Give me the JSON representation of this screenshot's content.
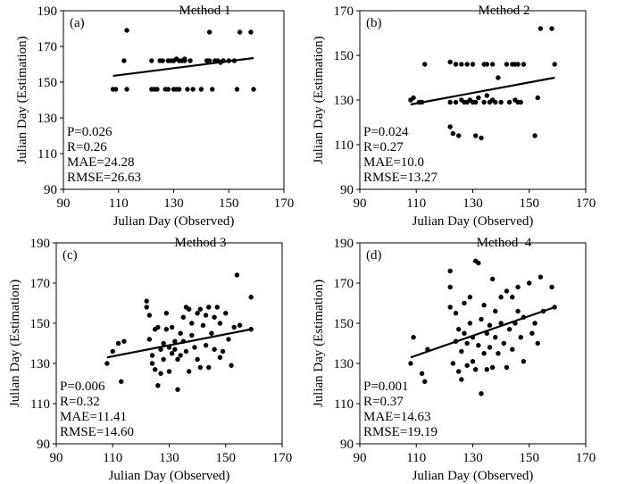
{
  "chart_data": [
    {
      "type": "scatter",
      "panel_label": "(a)",
      "title": "Method 1",
      "xlabel": "Julian Day (Observed)",
      "ylabel": "Julian Day (Estimation)",
      "xlim": [
        90,
        170
      ],
      "ylim": [
        90,
        190
      ],
      "xticks": [
        "90",
        "110",
        "130",
        "150",
        "170"
      ],
      "yticks": [
        "90",
        "110",
        "130",
        "150",
        "170",
        "190"
      ],
      "stats": [
        "P=0.026",
        "R=0.26",
        "MAE=24.28",
        "RMSE=26.63"
      ],
      "trendline": [
        [
          108,
          153.5
        ],
        [
          159,
          163.5
        ]
      ],
      "points": [
        [
          108,
          146
        ],
        [
          109,
          146
        ],
        [
          112,
          162
        ],
        [
          113,
          179
        ],
        [
          113,
          146
        ],
        [
          122,
          162
        ],
        [
          122,
          146
        ],
        [
          123,
          146
        ],
        [
          124,
          146
        ],
        [
          125,
          162
        ],
        [
          126,
          162
        ],
        [
          127,
          146
        ],
        [
          128,
          162
        ],
        [
          128,
          146
        ],
        [
          129,
          162
        ],
        [
          130,
          162
        ],
        [
          130,
          146
        ],
        [
          131,
          163
        ],
        [
          131,
          146
        ],
        [
          132,
          162
        ],
        [
          132,
          146
        ],
        [
          133,
          162
        ],
        [
          134,
          163
        ],
        [
          134,
          162
        ],
        [
          135,
          146
        ],
        [
          136,
          162
        ],
        [
          137,
          146
        ],
        [
          140,
          146
        ],
        [
          142,
          162
        ],
        [
          143,
          178
        ],
        [
          143,
          162
        ],
        [
          144,
          146
        ],
        [
          145,
          162
        ],
        [
          146,
          162
        ],
        [
          147,
          161
        ],
        [
          148,
          162
        ],
        [
          150,
          162
        ],
        [
          152,
          162
        ],
        [
          153,
          146
        ],
        [
          154,
          178
        ],
        [
          158,
          178
        ],
        [
          159,
          146
        ]
      ]
    },
    {
      "type": "scatter",
      "panel_label": "(b)",
      "title": "Method 2",
      "xlabel": "Julian Day (Observed)",
      "ylabel": "Julian Day (Estimation)",
      "xlim": [
        90,
        170
      ],
      "ylim": [
        90,
        170
      ],
      "xticks": [
        "90",
        "110",
        "130",
        "150",
        "170"
      ],
      "yticks": [
        "90",
        "110",
        "130",
        "150",
        "170"
      ],
      "stats": [
        "P=0.024",
        "R=0.27",
        "MAE=10.0",
        "RMSE=13.27"
      ],
      "trendline": [
        [
          108,
          128
        ],
        [
          159,
          140
        ]
      ],
      "points": [
        [
          108,
          130
        ],
        [
          109,
          131
        ],
        [
          111,
          129
        ],
        [
          112,
          129
        ],
        [
          113,
          146
        ],
        [
          122,
          147
        ],
        [
          122,
          118
        ],
        [
          122,
          129
        ],
        [
          123,
          115
        ],
        [
          124,
          146
        ],
        [
          124,
          129
        ],
        [
          125,
          114
        ],
        [
          126,
          146
        ],
        [
          126,
          130
        ],
        [
          127,
          129
        ],
        [
          128,
          146
        ],
        [
          128,
          129
        ],
        [
          129,
          130
        ],
        [
          130,
          146
        ],
        [
          130,
          129
        ],
        [
          131,
          114
        ],
        [
          131,
          129
        ],
        [
          132,
          131
        ],
        [
          133,
          113
        ],
        [
          134,
          146
        ],
        [
          134,
          129
        ],
        [
          135,
          132
        ],
        [
          135,
          146
        ],
        [
          136,
          129
        ],
        [
          137,
          146
        ],
        [
          137,
          130
        ],
        [
          138,
          129
        ],
        [
          139,
          140
        ],
        [
          140,
          129
        ],
        [
          142,
          146
        ],
        [
          143,
          129
        ],
        [
          144,
          146
        ],
        [
          145,
          146
        ],
        [
          145,
          130
        ],
        [
          146,
          129
        ],
        [
          146,
          146
        ],
        [
          147,
          129
        ],
        [
          148,
          146
        ],
        [
          152,
          114
        ],
        [
          153,
          131
        ],
        [
          154,
          162
        ],
        [
          158,
          162
        ],
        [
          159,
          146
        ]
      ]
    },
    {
      "type": "scatter",
      "panel_label": "(c)",
      "title": "Method 3",
      "xlabel": "Julian Day (Observed)",
      "ylabel": "Julian Day (Estimation)",
      "xlim": [
        90,
        170
      ],
      "ylim": [
        90,
        190
      ],
      "xticks": [
        "90",
        "110",
        "130",
        "150",
        "170"
      ],
      "yticks": [
        "90",
        "110",
        "130",
        "150",
        "170",
        "190"
      ],
      "stats": [
        "P=0.006",
        "R=0.32",
        "MAE=11.41",
        "RMSE=14.60"
      ],
      "trendline": [
        [
          108,
          133
        ],
        [
          159,
          147
        ]
      ],
      "points": [
        [
          108,
          130
        ],
        [
          110,
          136
        ],
        [
          112,
          140
        ],
        [
          113,
          121
        ],
        [
          114,
          141
        ],
        [
          122,
          161
        ],
        [
          122,
          158
        ],
        [
          123,
          154
        ],
        [
          123,
          142
        ],
        [
          124,
          130
        ],
        [
          124,
          134
        ],
        [
          125,
          147
        ],
        [
          125,
          127
        ],
        [
          126,
          148
        ],
        [
          126,
          119
        ],
        [
          127,
          137
        ],
        [
          127,
          125
        ],
        [
          128,
          132
        ],
        [
          128,
          140
        ],
        [
          129,
          155
        ],
        [
          129,
          147
        ],
        [
          130,
          138
        ],
        [
          130,
          126
        ],
        [
          131,
          148
        ],
        [
          131,
          135
        ],
        [
          132,
          141
        ],
        [
          132,
          137
        ],
        [
          133,
          117
        ],
        [
          133,
          132
        ],
        [
          134,
          145
        ],
        [
          134,
          134
        ],
        [
          135,
          153
        ],
        [
          135,
          141
        ],
        [
          136,
          158
        ],
        [
          136,
          136
        ],
        [
          137,
          157
        ],
        [
          137,
          126
        ],
        [
          138,
          150
        ],
        [
          138,
          144
        ],
        [
          139,
          138
        ],
        [
          140,
          132
        ],
        [
          140,
          155
        ],
        [
          141,
          157
        ],
        [
          141,
          128
        ],
        [
          142,
          149
        ],
        [
          143,
          154
        ],
        [
          143,
          139
        ],
        [
          144,
          158
        ],
        [
          144,
          128
        ],
        [
          145,
          145
        ],
        [
          146,
          153
        ],
        [
          146,
          137
        ],
        [
          147,
          158
        ],
        [
          148,
          150
        ],
        [
          148,
          133
        ],
        [
          149,
          136
        ],
        [
          150,
          155
        ],
        [
          151,
          142
        ],
        [
          152,
          129
        ],
        [
          153,
          148
        ],
        [
          154,
          174
        ],
        [
          155,
          149
        ],
        [
          159,
          163
        ],
        [
          159,
          147
        ]
      ]
    },
    {
      "type": "scatter",
      "panel_label": "(d)",
      "title": "Method  4",
      "xlabel": "Julian Day (Observed)",
      "ylabel": "Julian Day (Estimation)",
      "xlim": [
        90,
        170
      ],
      "ylim": [
        90,
        190
      ],
      "xticks": [
        "90",
        "110",
        "130",
        "150",
        "170"
      ],
      "yticks": [
        "90",
        "110",
        "130",
        "150",
        "170",
        "190"
      ],
      "stats": [
        "P=0.001",
        "R=0.37",
        "MAE=14.63",
        "RMSE=19.19"
      ],
      "trendline": [
        [
          108,
          133
        ],
        [
          159,
          158
        ]
      ],
      "points": [
        [
          108,
          130
        ],
        [
          109,
          143
        ],
        [
          112,
          125
        ],
        [
          113,
          121
        ],
        [
          114,
          137
        ],
        [
          122,
          176
        ],
        [
          122,
          168
        ],
        [
          122,
          158
        ],
        [
          123,
          130
        ],
        [
          124,
          155
        ],
        [
          124,
          141
        ],
        [
          125,
          126
        ],
        [
          125,
          147
        ],
        [
          126,
          122
        ],
        [
          126,
          136
        ],
        [
          127,
          145
        ],
        [
          127,
          160
        ],
        [
          128,
          129
        ],
        [
          128,
          140
        ],
        [
          129,
          150
        ],
        [
          129,
          163
        ],
        [
          130,
          131
        ],
        [
          130,
          143
        ],
        [
          131,
          181
        ],
        [
          131,
          127
        ],
        [
          132,
          180
        ],
        [
          132,
          139
        ],
        [
          133,
          115
        ],
        [
          133,
          152
        ],
        [
          134,
          159
        ],
        [
          134,
          135
        ],
        [
          135,
          145
        ],
        [
          135,
          127
        ],
        [
          136,
          149
        ],
        [
          136,
          138
        ],
        [
          137,
          172
        ],
        [
          137,
          128
        ],
        [
          138,
          156
        ],
        [
          138,
          143
        ],
        [
          139,
          135
        ],
        [
          140,
          163
        ],
        [
          140,
          150
        ],
        [
          141,
          140
        ],
        [
          142,
          166
        ],
        [
          142,
          128
        ],
        [
          143,
          147
        ],
        [
          144,
          163
        ],
        [
          144,
          137
        ],
        [
          145,
          150
        ],
        [
          146,
          156
        ],
        [
          146,
          168
        ],
        [
          147,
          143
        ],
        [
          148,
          131
        ],
        [
          148,
          153
        ],
        [
          150,
          170
        ],
        [
          151,
          145
        ],
        [
          152,
          150
        ],
        [
          153,
          140
        ],
        [
          154,
          173
        ],
        [
          155,
          156
        ],
        [
          158,
          168
        ],
        [
          159,
          158
        ]
      ]
    }
  ]
}
